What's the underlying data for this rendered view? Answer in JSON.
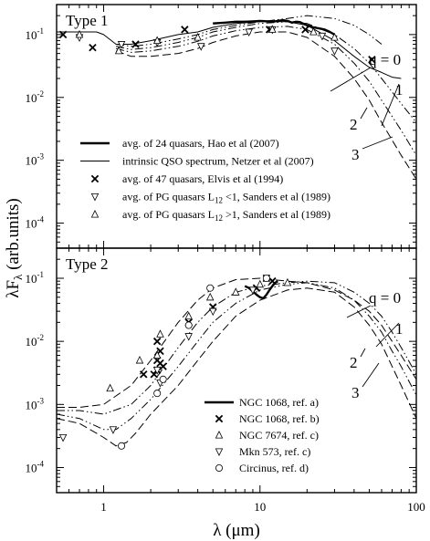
{
  "chart_data": [
    {
      "type": "line",
      "title": "Type 1",
      "xscale": "log",
      "yscale": "log",
      "xlim": [
        0.5,
        100
      ],
      "ylim": [
        4e-05,
        0.3
      ],
      "ytick_labels": [
        {
          "value": 0.1,
          "base": "10",
          "exp": "-1"
        },
        {
          "value": 0.01,
          "base": "10",
          "exp": "-2"
        },
        {
          "value": 0.001,
          "base": "10",
          "exp": "-3"
        },
        {
          "value": 0.0001,
          "base": "10",
          "exp": "-4"
        }
      ],
      "legend_position": "lower-left",
      "legend": [
        {
          "style": "thick",
          "label": "avg. of 24 quasars, Hao et al (2007)"
        },
        {
          "style": "thin",
          "label": "intrinsic QSO spectrum,  Netzer et al (2007)"
        },
        {
          "style": "cross",
          "label": "avg. of 47 quasars, Elvis et al (1994)"
        },
        {
          "style": "tri-down",
          "label_pre": "avg. of PG quasars L",
          "label_sub": "12",
          "label_post": " <1, Sanders et al (1989)"
        },
        {
          "style": "tri-up",
          "label_pre": "avg. of PG quasars L",
          "label_sub": "12",
          "label_post": " >1, Sanders et al (1989)"
        }
      ],
      "curve_labels": [
        "q = 0",
        "1",
        "2",
        "3"
      ],
      "series": [
        {
          "id": "hao",
          "style": "thick",
          "x": [
            5,
            6,
            7,
            8,
            9,
            10,
            11,
            12,
            13,
            14,
            15,
            16,
            17,
            18,
            20,
            22,
            24,
            26,
            28,
            30
          ],
          "y": [
            0.15,
            0.155,
            0.16,
            0.16,
            0.162,
            0.165,
            0.163,
            0.16,
            0.165,
            0.17,
            0.165,
            0.155,
            0.16,
            0.158,
            0.14,
            0.13,
            0.125,
            0.12,
            0.11,
            0.1
          ]
        },
        {
          "id": "netzer",
          "style": "thin",
          "x": [
            0.5,
            0.7,
            0.9,
            1.0,
            1.2,
            1.5,
            2,
            3,
            4,
            5,
            7,
            10,
            15,
            20,
            30,
            40,
            50,
            60,
            70,
            80
          ],
          "y": [
            0.11,
            0.11,
            0.11,
            0.1,
            0.07,
            0.07,
            0.08,
            0.1,
            0.11,
            0.13,
            0.15,
            0.16,
            0.16,
            0.14,
            0.08,
            0.045,
            0.03,
            0.025,
            0.021,
            0.02
          ]
        },
        {
          "id": "q0",
          "style": "dashdot",
          "x": [
            1.2,
            1.5,
            2,
            3,
            4,
            5,
            7,
            10,
            15,
            20,
            30,
            40,
            50,
            60
          ],
          "y": [
            0.07,
            0.065,
            0.07,
            0.085,
            0.1,
            0.12,
            0.14,
            0.16,
            0.18,
            0.2,
            0.18,
            0.14,
            0.1,
            0.07
          ]
        },
        {
          "id": "q1",
          "style": "dashdot",
          "x": [
            1.2,
            1.5,
            2,
            3,
            4,
            5,
            7,
            10,
            15,
            20,
            30,
            40,
            50,
            60,
            80,
            100
          ],
          "y": [
            0.065,
            0.058,
            0.062,
            0.075,
            0.09,
            0.11,
            0.13,
            0.15,
            0.16,
            0.15,
            0.1,
            0.06,
            0.035,
            0.02,
            0.008,
            0.004
          ]
        },
        {
          "id": "q2",
          "style": "dashdot",
          "x": [
            1.2,
            1.5,
            2,
            3,
            4,
            5,
            7,
            10,
            15,
            20,
            30,
            40,
            50,
            60,
            80,
            100
          ],
          "y": [
            0.06,
            0.052,
            0.055,
            0.065,
            0.078,
            0.095,
            0.115,
            0.13,
            0.135,
            0.12,
            0.07,
            0.035,
            0.018,
            0.009,
            0.003,
            0.0012
          ]
        },
        {
          "id": "q3",
          "style": "dashed",
          "x": [
            1.2,
            1.5,
            2,
            3,
            4,
            5,
            7,
            10,
            15,
            20,
            30,
            40,
            50,
            60,
            80,
            100
          ],
          "y": [
            0.055,
            0.045,
            0.045,
            0.05,
            0.06,
            0.075,
            0.095,
            0.11,
            0.11,
            0.09,
            0.045,
            0.02,
            0.009,
            0.004,
            0.0012,
            0.0005
          ]
        }
      ],
      "markers": [
        {
          "series": "elvis",
          "shape": "cross",
          "x": [
            0.55,
            0.85,
            1.6,
            3.3,
            11.5,
            19.5,
            52
          ],
          "y": [
            0.1,
            0.062,
            0.07,
            0.12,
            0.12,
            0.12,
            0.04
          ]
        },
        {
          "series": "sanders-low",
          "shape": "tri-down",
          "x": [
            0.7,
            1.3,
            2.2,
            4.2,
            8.5,
            12,
            25,
            30
          ],
          "y": [
            0.09,
            0.07,
            0.075,
            0.065,
            0.11,
            0.12,
            0.095,
            0.055
          ]
        },
        {
          "series": "sanders-high",
          "shape": "tri-up",
          "x": [
            0.7,
            1.25,
            2.2,
            4,
            12,
            22,
            30
          ],
          "y": [
            0.1,
            0.055,
            0.08,
            0.09,
            0.12,
            0.11,
            0.09
          ]
        }
      ]
    },
    {
      "type": "line",
      "title": "Type 2",
      "xscale": "log",
      "yscale": "log",
      "xlim": [
        0.5,
        100
      ],
      "ylim": [
        4e-05,
        0.3
      ],
      "xticks": [
        1,
        10,
        100
      ],
      "xtick_labels": [
        "1",
        "10",
        "100"
      ],
      "xlabel": "λ (μm)",
      "ylabel_pre": "λF",
      "ylabel_sub": "λ",
      "ylabel_post": " (arb.units)",
      "ytick_labels": [
        {
          "value": 0.1,
          "base": "10",
          "exp": "-1"
        },
        {
          "value": 0.01,
          "base": "10",
          "exp": "-2"
        },
        {
          "value": 0.001,
          "base": "10",
          "exp": "-3"
        },
        {
          "value": 0.0001,
          "base": "10",
          "exp": "-4"
        }
      ],
      "legend_position": "lower-right",
      "legend": [
        {
          "style": "thick",
          "label": "NGC 1068, ref. a)"
        },
        {
          "style": "cross",
          "label": "NGC 1068, ref. b)"
        },
        {
          "style": "tri-up",
          "label": "NGC 7674, ref. c)"
        },
        {
          "style": "tri-down",
          "label": "Mkn 573, ref. c)"
        },
        {
          "style": "circle",
          "label": "Circinus, ref. d)"
        }
      ],
      "curve_labels": [
        "q = 0",
        "1",
        "2",
        "3"
      ],
      "series": [
        {
          "id": "ngc1068-a",
          "style": "thick",
          "x": [
            8,
            8.5,
            9,
            9.5,
            10,
            10.5,
            11,
            11.5,
            12,
            12.5,
            13
          ],
          "y": [
            0.075,
            0.07,
            0.062,
            0.055,
            0.05,
            0.048,
            0.055,
            0.065,
            0.075,
            0.085,
            0.09
          ]
        },
        {
          "id": "q0",
          "style": "dashed",
          "x": [
            0.5,
            0.7,
            1.0,
            1.5,
            2,
            3,
            4,
            5,
            7,
            10,
            15,
            20,
            30,
            40,
            50,
            60,
            70,
            80,
            100
          ],
          "y": [
            0.0009,
            0.0009,
            0.001,
            0.002,
            0.005,
            0.02,
            0.045,
            0.07,
            0.095,
            0.1,
            0.09,
            0.085,
            0.065,
            0.045,
            0.03,
            0.018,
            0.01,
            0.006,
            0.0025
          ]
        },
        {
          "id": "q1",
          "style": "dashdot",
          "x": [
            0.5,
            0.7,
            1.0,
            1.5,
            2,
            3,
            4,
            5,
            7,
            10,
            15,
            20,
            30,
            40,
            50,
            60,
            70,
            80,
            100
          ],
          "y": [
            0.0008,
            0.0008,
            0.0007,
            0.001,
            0.002,
            0.008,
            0.02,
            0.035,
            0.06,
            0.075,
            0.085,
            0.09,
            0.085,
            0.06,
            0.04,
            0.025,
            0.014,
            0.008,
            0.003
          ]
        },
        {
          "id": "q2",
          "style": "dashdot",
          "x": [
            0.5,
            0.7,
            1.0,
            1.2,
            1.5,
            2,
            3,
            4,
            5,
            7,
            10,
            15,
            20,
            30,
            40,
            50,
            60,
            70,
            80,
            100
          ],
          "y": [
            0.0007,
            0.0006,
            0.0004,
            0.0004,
            0.0006,
            0.0012,
            0.004,
            0.01,
            0.02,
            0.04,
            0.065,
            0.08,
            0.085,
            0.07,
            0.045,
            0.025,
            0.014,
            0.007,
            0.004,
            0.0014
          ]
        },
        {
          "id": "q3",
          "style": "dashed",
          "x": [
            0.5,
            0.7,
            1.0,
            1.2,
            1.4,
            1.6,
            2,
            3,
            4,
            5,
            7,
            10,
            15,
            20,
            30,
            40,
            50,
            60,
            70,
            80,
            100
          ],
          "y": [
            0.0006,
            0.0005,
            0.0003,
            0.00022,
            0.00025,
            0.00035,
            0.0007,
            0.002,
            0.005,
            0.01,
            0.025,
            0.045,
            0.065,
            0.07,
            0.06,
            0.035,
            0.018,
            0.009,
            0.004,
            0.002,
            0.0006
          ]
        }
      ],
      "markers": [
        {
          "series": "ngc1068-b",
          "shape": "cross",
          "x": [
            1.8,
            2.2,
            2.2,
            2.3,
            2.3,
            2.4,
            2.1,
            2.2,
            3.5,
            5,
            9.5,
            11,
            12
          ],
          "y": [
            0.003,
            0.0035,
            0.005,
            0.007,
            0.0045,
            0.004,
            0.003,
            0.01,
            0.02,
            0.035,
            0.07,
            0.1,
            0.09
          ]
        },
        {
          "series": "ngc7674",
          "shape": "tri-up",
          "x": [
            1.1,
            1.7,
            2.2,
            2.3,
            3.5,
            4.8,
            7,
            10,
            15
          ],
          "y": [
            0.0018,
            0.005,
            0.006,
            0.013,
            0.025,
            0.05,
            0.06,
            0.08,
            0.085
          ]
        },
        {
          "series": "mkn573",
          "shape": "tri-down",
          "x": [
            0.55,
            1.15,
            2.2,
            2.3,
            3.5,
            5,
            9
          ],
          "y": [
            0.0003,
            0.0004,
            0.0035,
            0.0022,
            0.012,
            0.03,
            0.065
          ]
        },
        {
          "series": "circinus",
          "shape": "circle",
          "x": [
            1.3,
            2.2,
            2.4,
            3.5,
            4.8,
            11
          ],
          "y": [
            0.00022,
            0.0015,
            0.0025,
            0.018,
            0.07,
            0.1
          ]
        }
      ]
    }
  ]
}
